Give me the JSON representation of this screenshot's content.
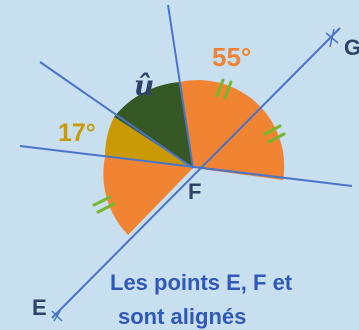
{
  "diagram": {
    "point_labels": {
      "f": "F",
      "e": "E",
      "g": "G"
    },
    "angle_labels": {
      "u_hat": "û",
      "deg_55": "55°",
      "deg_17": "17°"
    },
    "caption": {
      "line1": "Les points E, F et",
      "line2": "sont alignés"
    },
    "colors": {
      "background": "#c7dfef",
      "line": "#4a74c9",
      "orange": "#f08432",
      "dark_green": "#365825",
      "gold": "#c99a06",
      "tick_green": "#7ab52f",
      "text_dark": "#2d4468",
      "caption_blue": "#2f58b8"
    }
  }
}
